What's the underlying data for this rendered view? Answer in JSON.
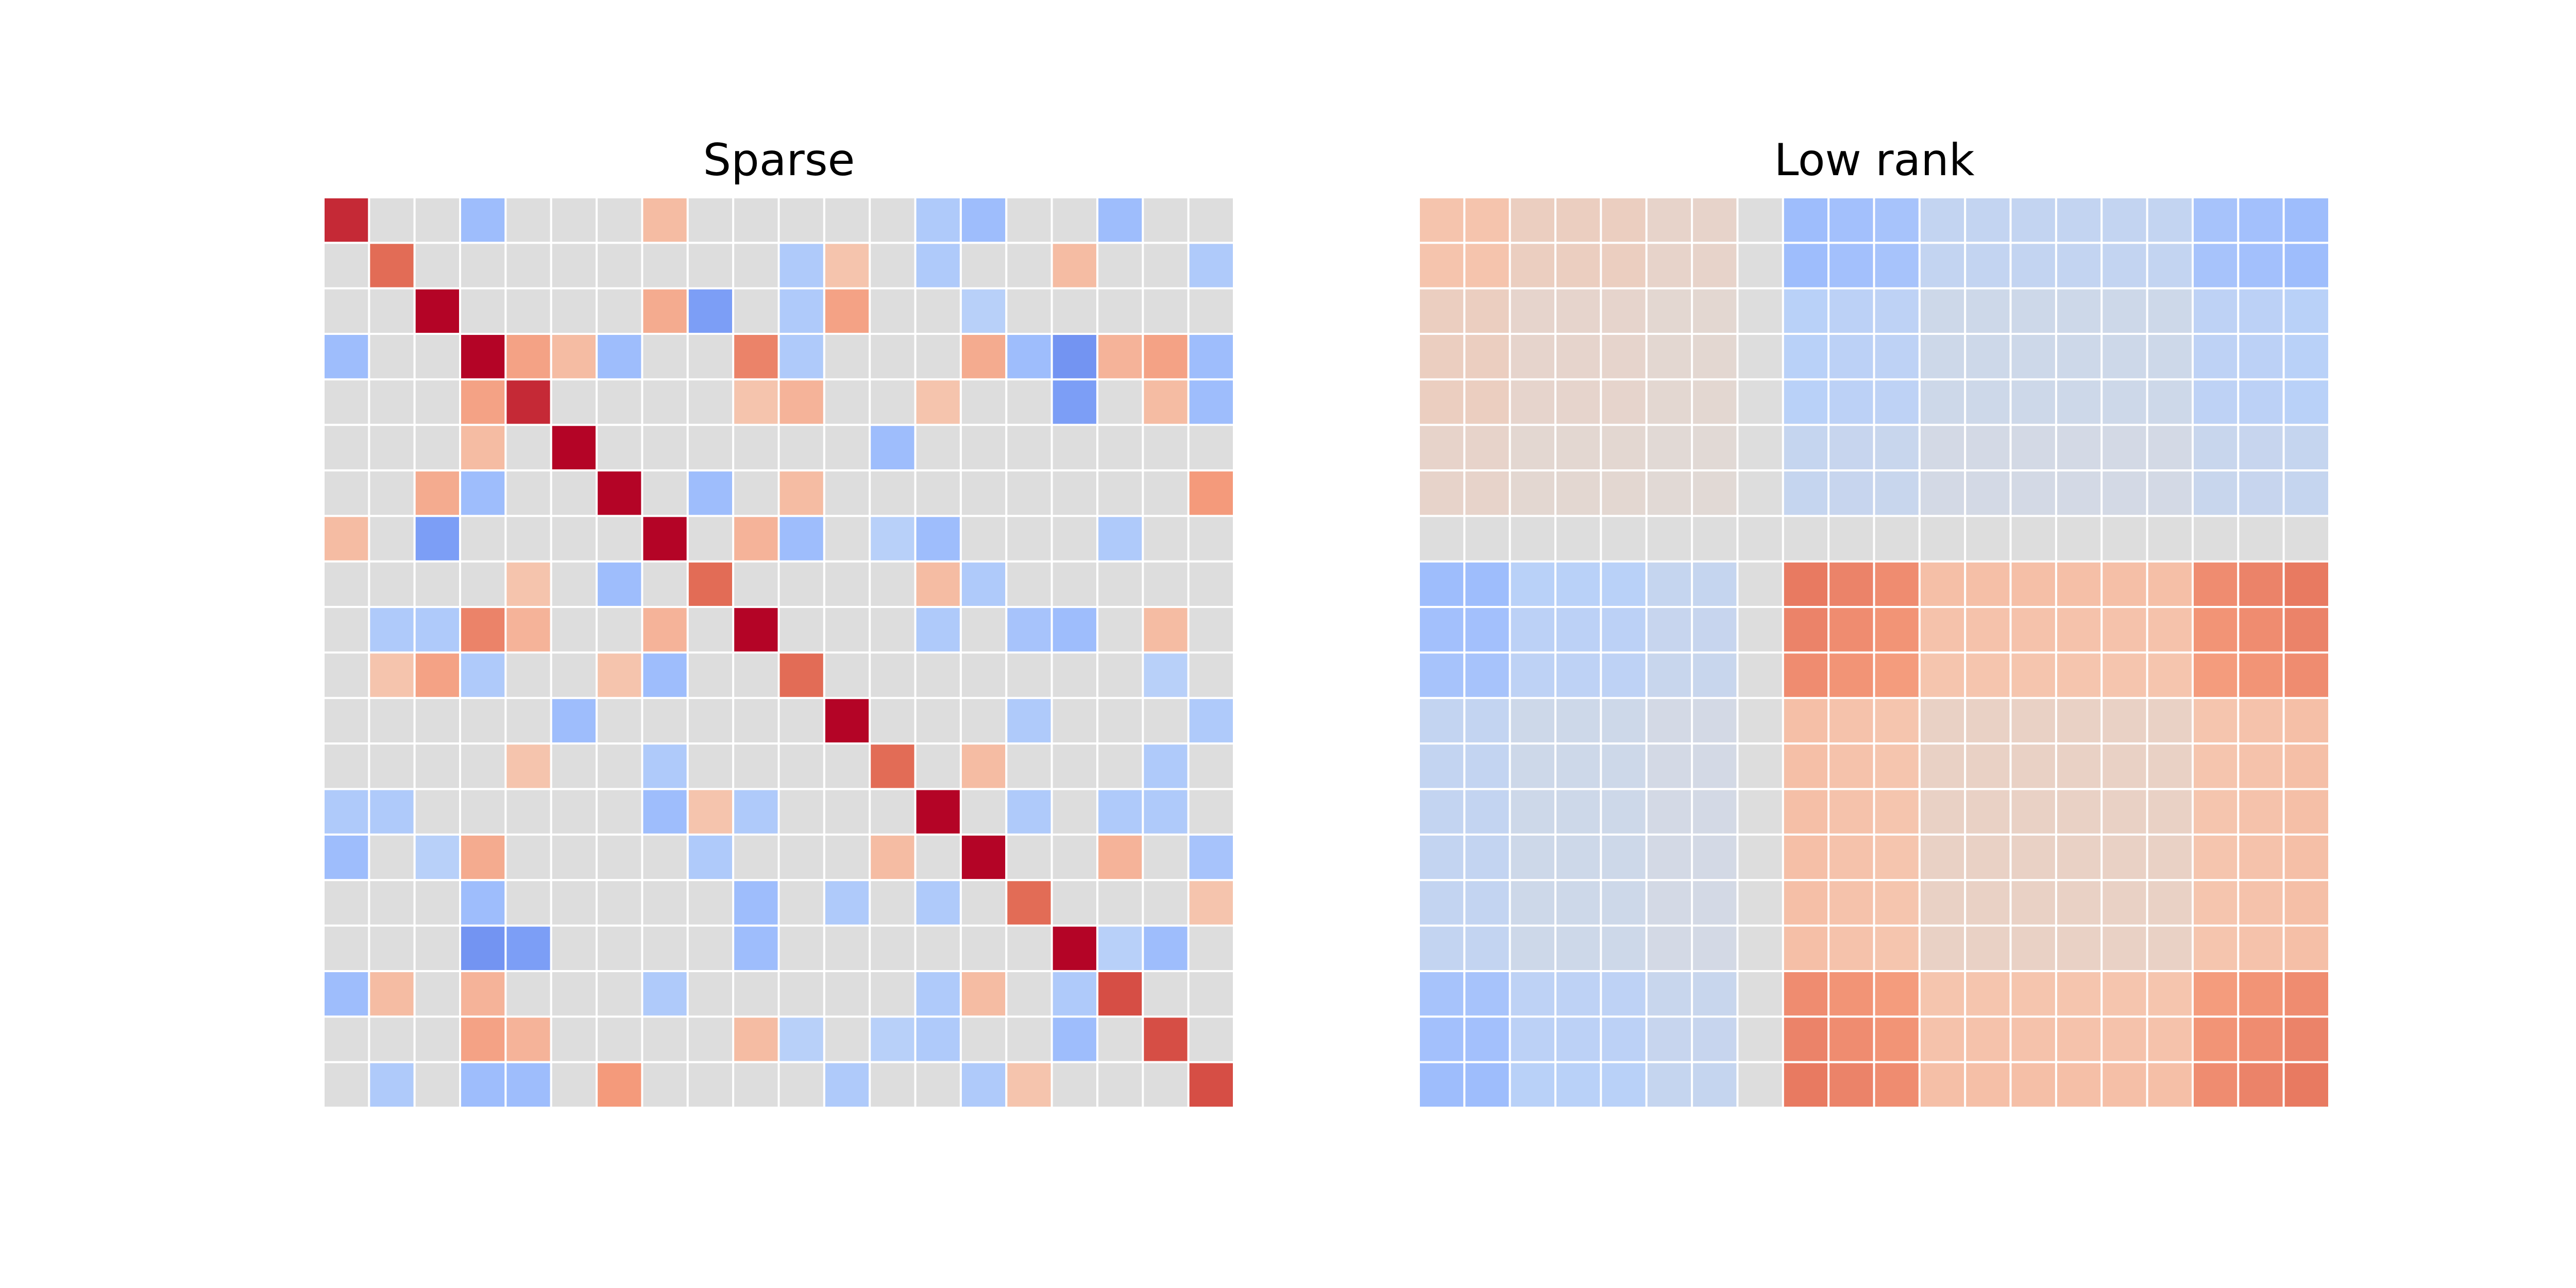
{
  "chart_data": [
    {
      "type": "heatmap",
      "title": "Sparse",
      "rows": 20,
      "cols": 20,
      "vmin": -1,
      "vmax": 1,
      "colormap": "coolwarm",
      "grid": false,
      "values": [
        [
          0.9,
          0,
          0,
          -0.4,
          0,
          0,
          0,
          0.3,
          0,
          0,
          0,
          0,
          0,
          -0.3,
          -0.4,
          0,
          0,
          -0.4,
          0,
          0
        ],
        [
          0,
          0.7,
          0,
          0,
          0,
          0,
          0,
          0,
          0,
          0,
          -0.3,
          0.25,
          0,
          -0.3,
          0,
          0,
          0.3,
          0,
          0,
          -0.3
        ],
        [
          0,
          0,
          1,
          0,
          0,
          0,
          0,
          0.4,
          -0.6,
          0,
          -0.3,
          0.45,
          0,
          0,
          -0.25,
          0,
          0,
          0,
          0,
          0
        ],
        [
          -0.4,
          0,
          0,
          1,
          0.45,
          0.3,
          -0.4,
          0,
          0,
          0.6,
          -0.3,
          0,
          0,
          0,
          0.4,
          -0.4,
          -0.65,
          0.35,
          0.45,
          -0.4
        ],
        [
          0,
          0,
          0,
          0.45,
          0.9,
          0,
          0,
          0,
          0,
          0.25,
          0.35,
          0,
          0,
          0.25,
          0,
          0,
          -0.6,
          0,
          0.3,
          -0.4
        ],
        [
          0,
          0,
          0,
          0.3,
          0,
          1,
          0,
          0,
          0,
          0,
          0,
          0,
          -0.4,
          0,
          0,
          0,
          0,
          0,
          0,
          0
        ],
        [
          0,
          0,
          0.4,
          -0.4,
          0,
          0,
          1,
          0,
          -0.4,
          0,
          0.3,
          0,
          0,
          0,
          0,
          0,
          0,
          0,
          0,
          0.5
        ],
        [
          0.3,
          0,
          -0.6,
          0,
          0,
          0,
          0,
          1,
          0,
          0.35,
          -0.4,
          0,
          -0.25,
          -0.4,
          0,
          0,
          0,
          -0.3,
          0,
          0
        ],
        [
          0,
          0,
          0,
          0,
          0.25,
          0,
          -0.4,
          0,
          0.7,
          0,
          0,
          0,
          0,
          0.3,
          -0.3,
          0,
          0,
          0,
          0,
          0
        ],
        [
          0,
          -0.3,
          -0.3,
          0.6,
          0.35,
          0,
          0,
          0.35,
          0,
          1,
          0,
          0,
          0,
          -0.3,
          0,
          -0.35,
          -0.4,
          0,
          0.3,
          0
        ],
        [
          0,
          0.25,
          0.45,
          -0.3,
          0,
          0,
          0.25,
          -0.4,
          0,
          0,
          0.7,
          0,
          0,
          0,
          0,
          0,
          0,
          0,
          -0.25,
          0
        ],
        [
          0,
          0,
          0,
          0,
          0,
          -0.4,
          0,
          0,
          0,
          0,
          0,
          1,
          0,
          0,
          0,
          -0.3,
          0,
          0,
          0,
          -0.3
        ],
        [
          0,
          0,
          0,
          0,
          0.25,
          0,
          0,
          -0.3,
          0,
          0,
          0,
          0,
          0.7,
          0,
          0.3,
          0,
          0,
          0,
          -0.3,
          0
        ],
        [
          -0.3,
          -0.3,
          0,
          0,
          0,
          0,
          0,
          -0.4,
          0.25,
          -0.3,
          0,
          0,
          0,
          1,
          0,
          -0.3,
          0,
          -0.3,
          -0.3,
          0
        ],
        [
          -0.4,
          0,
          -0.25,
          0.4,
          0,
          0,
          0,
          0,
          -0.3,
          0,
          0,
          0,
          0.3,
          0,
          1,
          0,
          0,
          0.35,
          0,
          -0.35
        ],
        [
          0,
          0,
          0,
          -0.4,
          0,
          0,
          0,
          0,
          0,
          -0.4,
          0,
          -0.3,
          0,
          -0.3,
          0,
          0.7,
          0,
          0,
          0,
          0.25
        ],
        [
          0,
          0,
          0,
          -0.65,
          -0.6,
          0,
          0,
          0,
          0,
          -0.4,
          0,
          0,
          0,
          0,
          0,
          0,
          1,
          -0.25,
          -0.4,
          0
        ],
        [
          -0.4,
          0.3,
          0,
          0.35,
          0,
          0,
          0,
          -0.3,
          0,
          0,
          0,
          0,
          0,
          -0.3,
          0.3,
          0,
          -0.3,
          0.8,
          0,
          0
        ],
        [
          0,
          0,
          0,
          0.45,
          0.35,
          0,
          0,
          0,
          0,
          0.3,
          -0.25,
          0,
          -0.25,
          -0.3,
          0,
          0,
          -0.4,
          0,
          0.8,
          0
        ],
        [
          0,
          -0.3,
          0,
          -0.4,
          -0.4,
          0,
          0.5,
          0,
          0,
          0,
          0,
          -0.3,
          0,
          0,
          -0.3,
          0.25,
          0,
          0,
          0,
          0.8
        ]
      ]
    },
    {
      "type": "heatmap",
      "title": "Low rank",
      "rows": 20,
      "cols": 20,
      "vmin": -1,
      "vmax": 1,
      "colormap": "coolwarm",
      "grid": false,
      "row_factors": [
        -0.5,
        -0.5,
        -0.3,
        -0.3,
        -0.3,
        -0.2,
        -0.2,
        0,
        0.8,
        0.75,
        0.7,
        0.35,
        0.35,
        0.35,
        0.35,
        0.35,
        0.35,
        0.7,
        0.75,
        0.8
      ],
      "col_factors": [
        -0.5,
        -0.5,
        -0.3,
        -0.3,
        -0.3,
        -0.2,
        -0.2,
        0,
        0.8,
        0.75,
        0.7,
        0.35,
        0.35,
        0.35,
        0.35,
        0.35,
        0.35,
        0.7,
        0.75,
        0.8
      ]
    }
  ]
}
